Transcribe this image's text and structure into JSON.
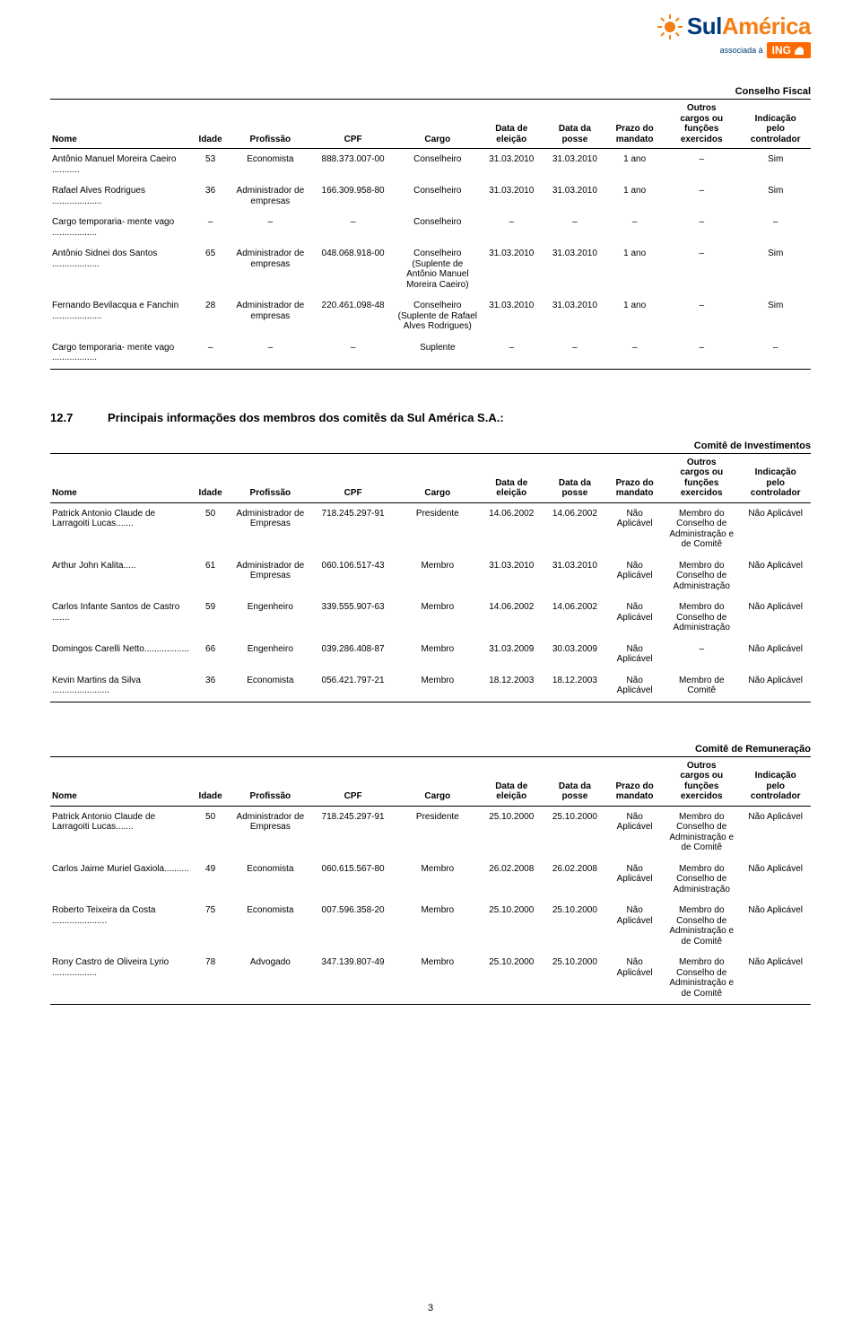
{
  "logo": {
    "brand_sul": "Sul",
    "brand_america": "América",
    "assoc_text": "associada à",
    "ing": "ING"
  },
  "headers": {
    "nome": "Nome",
    "idade": "Idade",
    "profissao": "Profissão",
    "cpf": "CPF",
    "cargo": "Cargo",
    "data_eleicao": "Data de\neleição",
    "data_posse": "Data da\nposse",
    "prazo": "Prazo do\nmandato",
    "outros": "Outros\ncargos ou\nfunções\nexercidos",
    "indicacao": "Indicação\npelo\ncontrolador"
  },
  "t1": {
    "title": "Conselho Fiscal",
    "rows": [
      {
        "nome": "Antônio Manuel Moreira Caeiro",
        "dots": "...........",
        "idade": "53",
        "prof": "Economista",
        "cpf": "888.373.007-00",
        "cargo": "Conselheiro",
        "d1": "31.03.2010",
        "d2": "31.03.2010",
        "prazo": "1 ano",
        "func": "–",
        "ind": "Sim"
      },
      {
        "nome": "Rafael Alves Rodrigues",
        "dots": "....................",
        "idade": "36",
        "prof": "Administrador de empresas",
        "cpf": "166.309.958-80",
        "cargo": "Conselheiro",
        "d1": "31.03.2010",
        "d2": "31.03.2010",
        "prazo": "1 ano",
        "func": "–",
        "ind": "Sim"
      },
      {
        "nome": "Cargo temporaria- mente vago",
        "dots": "..................",
        "idade": "–",
        "prof": "–",
        "cpf": "–",
        "cargo": "Conselheiro",
        "d1": "–",
        "d2": "–",
        "prazo": "–",
        "func": "–",
        "ind": "–"
      },
      {
        "nome": "Antônio Sidnei dos Santos",
        "dots": "...................",
        "idade": "65",
        "prof": "Administrador de empresas",
        "cpf": "048.068.918-00",
        "cargo": "Conselheiro (Suplente de Antônio Manuel Moreira Caeiro)",
        "d1": "31.03.2010",
        "d2": "31.03.2010",
        "prazo": "1 ano",
        "func": "–",
        "ind": "Sim"
      },
      {
        "nome": "Fernando Bevilacqua e Fanchin",
        "dots": "....................",
        "idade": "28",
        "prof": "Administrador de empresas",
        "cpf": "220.461.098-48",
        "cargo": "Conselheiro (Suplente de Rafael Alves Rodrigues)",
        "d1": "31.03.2010",
        "d2": "31.03.2010",
        "prazo": "1 ano",
        "func": "–",
        "ind": "Sim"
      },
      {
        "nome": "Cargo temporaria- mente vago",
        "dots": "..................",
        "idade": "–",
        "prof": "–",
        "cpf": "–",
        "cargo": "Suplente",
        "d1": "–",
        "d2": "–",
        "prazo": "–",
        "func": "–",
        "ind": "–"
      }
    ]
  },
  "section": {
    "num": "12.7",
    "title": "Principais informações dos membros dos comitês da Sul América S.A.:"
  },
  "t2": {
    "title": "Comitê de Investimentos",
    "rows": [
      {
        "nome": "Patrick Antonio Claude de Larragoiti Lucas",
        "dots": ".......",
        "idade": "50",
        "prof": "Administrador de Empresas",
        "cpf": "718.245.297-91",
        "cargo": "Presidente",
        "d1": "14.06.2002",
        "d2": "14.06.2002",
        "prazo": "Não Aplicável",
        "func": "Membro do Conselho de Administração e de Comitê",
        "ind": "Não Aplicável"
      },
      {
        "nome": "Arthur John Kalita",
        "dots": ".....",
        "idade": "61",
        "prof": "Administrador de Empresas",
        "cpf": "060.106.517-43",
        "cargo": "Membro",
        "d1": "31.03.2010",
        "d2": "31.03.2010",
        "prazo": "Não Aplicável",
        "func": "Membro do Conselho de Administração",
        "ind": "Não Aplicável"
      },
      {
        "nome": "Carlos Infante Santos de Castro",
        "dots": ".......",
        "idade": "59",
        "prof": "Engenheiro",
        "cpf": "339.555.907-63",
        "cargo": "Membro",
        "d1": "14.06.2002",
        "d2": "14.06.2002",
        "prazo": "Não Aplicável",
        "func": "Membro do Conselho de Administração",
        "ind": "Não Aplicável"
      },
      {
        "nome": "Domingos Carelli Netto",
        "dots": "..................",
        "idade": "66",
        "prof": "Engenheiro",
        "cpf": "039.286.408-87",
        "cargo": "Membro",
        "d1": "31.03.2009",
        "d2": "30.03.2009",
        "prazo": "Não Aplicável",
        "func": "–",
        "ind": "Não Aplicável"
      },
      {
        "nome": "Kevin Martins da Silva",
        "dots": ".......................",
        "idade": "36",
        "prof": "Economista",
        "cpf": "056.421.797-21",
        "cargo": "Membro",
        "d1": "18.12.2003",
        "d2": "18.12.2003",
        "prazo": "Não Aplicável",
        "func": "Membro de Comitê",
        "ind": "Não Aplicável"
      }
    ]
  },
  "t3": {
    "title": "Comitê de Remuneração",
    "rows": [
      {
        "nome": "Patrick Antonio Claude de Larragoiti Lucas",
        "dots": ".......",
        "idade": "50",
        "prof": "Administrador de Empresas",
        "cpf": "718.245.297-91",
        "cargo": "Presidente",
        "d1": "25.10.2000",
        "d2": "25.10.2000",
        "prazo": "Não Aplicável",
        "func": "Membro do Conselho de Administração e de Comitê",
        "ind": "Não Aplicável"
      },
      {
        "nome": "Carlos Jaime Muriel Gaxiola",
        "dots": "..........",
        "idade": "49",
        "prof": "Economista",
        "cpf": "060.615.567-80",
        "cargo": "Membro",
        "d1": "26.02.2008",
        "d2": "26.02.2008",
        "prazo": "Não Aplicável",
        "func": "Membro do Conselho de Administração",
        "ind": "Não Aplicável"
      },
      {
        "nome": "Roberto Teixeira da Costa",
        "dots": "......................",
        "idade": "75",
        "prof": "Economista",
        "cpf": "007.596.358-20",
        "cargo": "Membro",
        "d1": "25.10.2000",
        "d2": "25.10.2000",
        "prazo": "Não Aplicável",
        "func": "Membro do Conselho de Administração e de Comitê",
        "ind": "Não Aplicável"
      },
      {
        "nome": "Rony Castro de Oliveira Lyrio",
        "dots": "..................",
        "idade": "78",
        "prof": "Advogado",
        "cpf": "347.139.807-49",
        "cargo": "Membro",
        "d1": "25.10.2000",
        "d2": "25.10.2000",
        "prazo": "Não Aplicável",
        "func": "Membro do Conselho de Administração e de Comitê",
        "ind": "Não Aplicável"
      }
    ]
  },
  "page_number": "3",
  "colors": {
    "brand_blue": "#003a7a",
    "brand_orange": "#f57f17",
    "ing_orange": "#ff6a00",
    "text": "#000000",
    "bg": "#ffffff"
  }
}
